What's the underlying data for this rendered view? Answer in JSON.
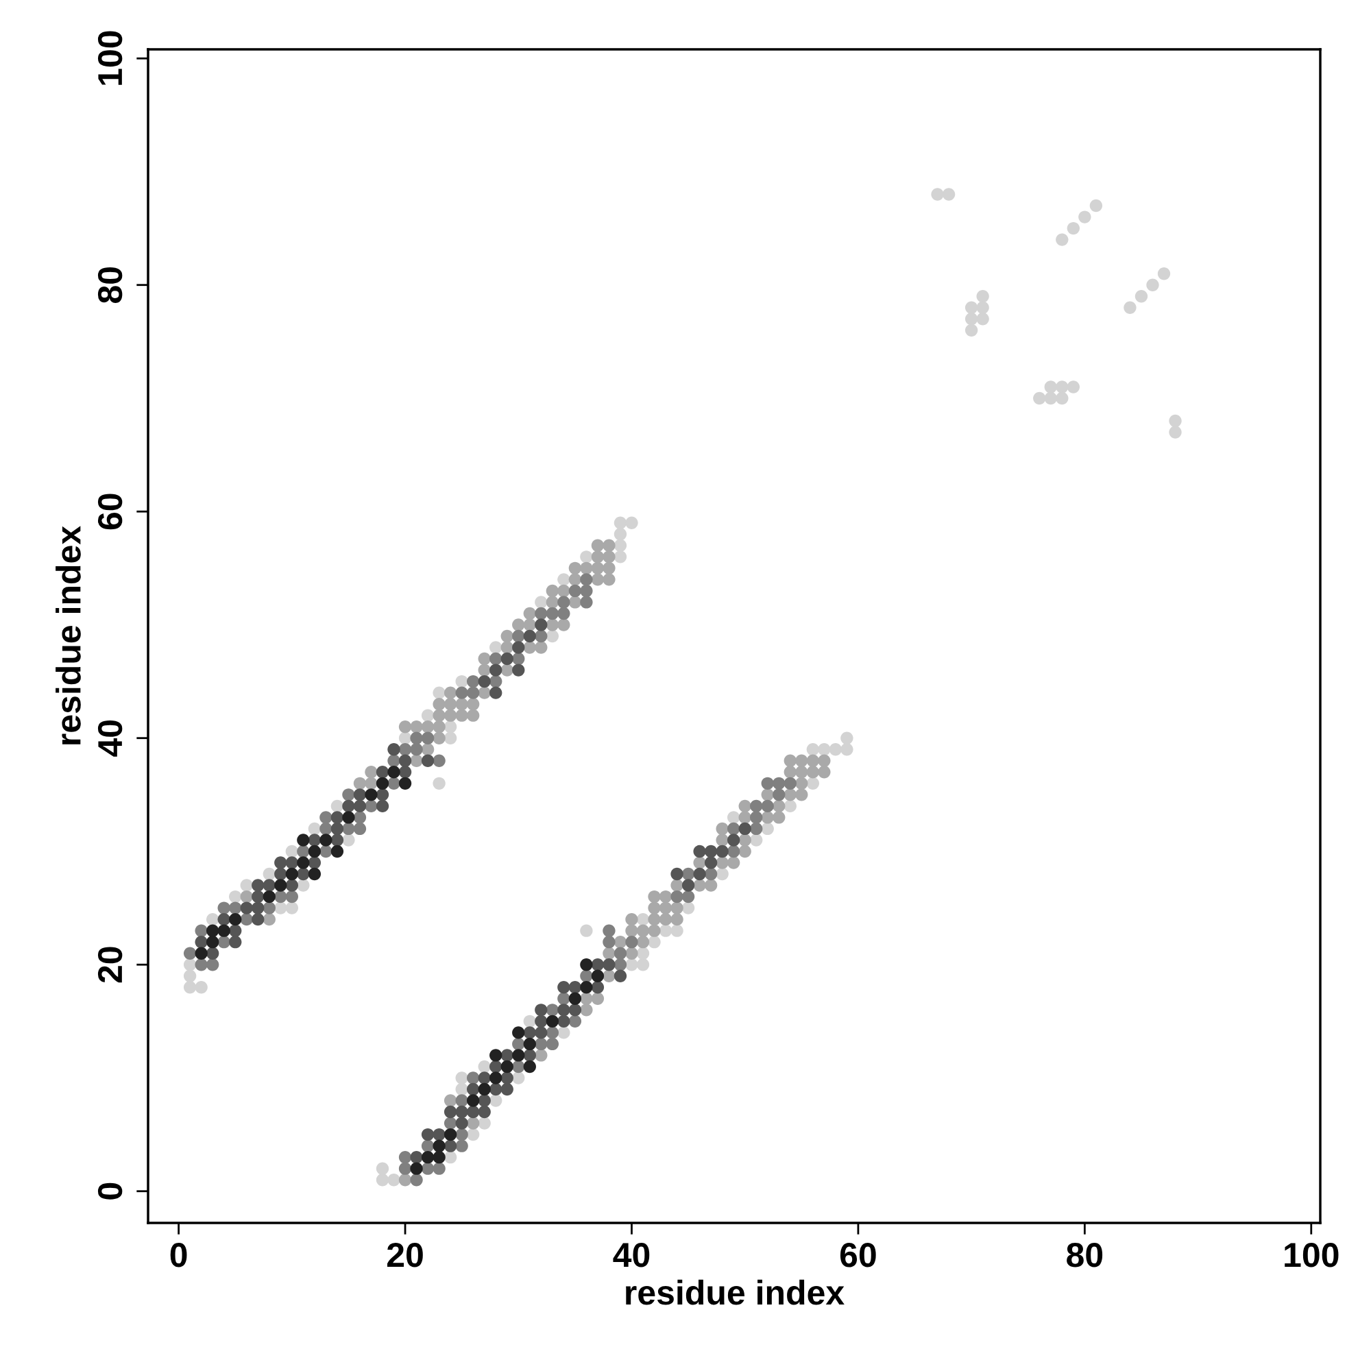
{
  "chart_data": {
    "type": "scatter",
    "xlabel": "residue index",
    "ylabel": "residue index",
    "xlim": [
      -2.7,
      100.8
    ],
    "ylim": [
      -2.8,
      100.8
    ],
    "xticks": [
      0,
      20,
      40,
      60,
      80,
      100
    ],
    "yticks": [
      0,
      20,
      40,
      60,
      80,
      100
    ],
    "grid": false,
    "marker": "circle",
    "series": [
      {
        "color": "#d3d3d3",
        "x": [
          1,
          2,
          1,
          1,
          3,
          9,
          10,
          5,
          6,
          11,
          8,
          10,
          15,
          12,
          14,
          23,
          20,
          24,
          24,
          22,
          23,
          25,
          28,
          33,
          32,
          34,
          36,
          39,
          39,
          39,
          39,
          40,
          18,
          19,
          18,
          24,
          26,
          27,
          28,
          25,
          25,
          30,
          27,
          34,
          31,
          40,
          41,
          41,
          42,
          36,
          43,
          44,
          41,
          45,
          48,
          51,
          52,
          49,
          54,
          56,
          56,
          57,
          58,
          59,
          59,
          67,
          68,
          78,
          79,
          80,
          81,
          84,
          85,
          86,
          87,
          71,
          70,
          71,
          70,
          71,
          70,
          77,
          78,
          79,
          76,
          77,
          78,
          88,
          88
        ],
        "values": [
          18,
          18,
          19,
          20,
          24,
          25,
          25,
          26,
          27,
          27,
          28,
          30,
          31,
          32,
          34,
          36,
          40,
          40,
          41,
          42,
          44,
          45,
          48,
          49,
          52,
          54,
          56,
          56,
          57,
          58,
          59,
          59,
          1,
          1,
          2,
          3,
          5,
          6,
          8,
          9,
          10,
          10,
          11,
          14,
          15,
          20,
          20,
          21,
          22,
          23,
          23,
          23,
          24,
          25,
          28,
          31,
          32,
          33,
          34,
          36,
          39,
          39,
          39,
          39,
          40,
          88,
          88,
          84,
          85,
          86,
          87,
          78,
          79,
          80,
          81,
          79,
          78,
          78,
          77,
          77,
          76,
          71,
          71,
          71,
          70,
          70,
          70,
          68,
          67
        ]
      },
      {
        "color": "#a9a9a9",
        "x": [
          8,
          6,
          16,
          17,
          17,
          21,
          22,
          23,
          20,
          21,
          22,
          23,
          23,
          24,
          25,
          26,
          23,
          24,
          25,
          26,
          24,
          27,
          27,
          29,
          27,
          29,
          31,
          32,
          29,
          30,
          31,
          33,
          34,
          31,
          33,
          35,
          33,
          34,
          35,
          37,
          38,
          35,
          36,
          37,
          38,
          37,
          38,
          37,
          38,
          20,
          26,
          24,
          32,
          36,
          36,
          37,
          38,
          38,
          40,
          39,
          41,
          40,
          41,
          42,
          40,
          42,
          43,
          44,
          42,
          43,
          44,
          42,
          43,
          44,
          46,
          47,
          46,
          48,
          49,
          50,
          48,
          50,
          48,
          50,
          52,
          53,
          50,
          53,
          52,
          54,
          55,
          55,
          54,
          55,
          56,
          57,
          54,
          55,
          56,
          57
        ],
        "values": [
          24,
          26,
          36,
          36,
          37,
          38,
          39,
          40,
          41,
          41,
          41,
          41,
          42,
          42,
          42,
          42,
          43,
          43,
          43,
          43,
          44,
          44,
          46,
          46,
          47,
          48,
          48,
          48,
          49,
          50,
          50,
          50,
          50,
          51,
          52,
          52,
          53,
          53,
          54,
          54,
          54,
          55,
          55,
          55,
          55,
          56,
          56,
          57,
          57,
          1,
          6,
          8,
          12,
          16,
          17,
          17,
          19,
          21,
          21,
          22,
          22,
          23,
          23,
          23,
          24,
          24,
          24,
          24,
          25,
          25,
          25,
          26,
          26,
          27,
          27,
          27,
          29,
          29,
          29,
          30,
          31,
          31,
          32,
          33,
          33,
          33,
          34,
          34,
          35,
          35,
          35,
          36,
          37,
          37,
          37,
          37,
          38,
          38,
          38,
          38
        ]
      },
      {
        "color": "#808080",
        "x": [
          2,
          3,
          1,
          4,
          2,
          6,
          4,
          5,
          8,
          9,
          10,
          11,
          13,
          13,
          15,
          16,
          13,
          16,
          17,
          15,
          19,
          19,
          23,
          20,
          21,
          21,
          22,
          25,
          26,
          26,
          28,
          28,
          30,
          30,
          32,
          32,
          33,
          34,
          34,
          36,
          35,
          36,
          36,
          21,
          20,
          22,
          23,
          20,
          22,
          25,
          25,
          24,
          25,
          26,
          30,
          30,
          32,
          33,
          33,
          35,
          33,
          34,
          36,
          39,
          39,
          38,
          40,
          38,
          44,
          45,
          45,
          47,
          49,
          49,
          51,
          51,
          51,
          52,
          53,
          52,
          53,
          54
        ],
        "values": [
          20,
          20,
          21,
          22,
          23,
          24,
          25,
          25,
          25,
          26,
          26,
          30,
          30,
          32,
          32,
          32,
          33,
          33,
          34,
          35,
          36,
          38,
          38,
          39,
          39,
          40,
          40,
          44,
          44,
          45,
          45,
          47,
          47,
          49,
          49,
          51,
          51,
          51,
          52,
          52,
          53,
          53,
          54,
          1,
          2,
          2,
          2,
          3,
          4,
          4,
          5,
          6,
          8,
          10,
          11,
          13,
          13,
          13,
          14,
          15,
          16,
          17,
          19,
          20,
          21,
          22,
          22,
          23,
          26,
          26,
          28,
          28,
          30,
          32,
          32,
          33,
          34,
          34,
          35,
          36,
          36,
          36
        ]
      },
      {
        "color": "#555555",
        "x": [
          3,
          2,
          5,
          5,
          4,
          7,
          6,
          7,
          7,
          7,
          8,
          10,
          9,
          11,
          9,
          10,
          12,
          12,
          14,
          14,
          14,
          15,
          16,
          18,
          16,
          18,
          18,
          20,
          20,
          22,
          19,
          28,
          27,
          28,
          30,
          29,
          30,
          31,
          32,
          21,
          24,
          22,
          23,
          25,
          24,
          25,
          26,
          27,
          27,
          26,
          28,
          29,
          27,
          29,
          28,
          29,
          31,
          31,
          32,
          32,
          34,
          32,
          34,
          35,
          34,
          35,
          37,
          39,
          37,
          38,
          45,
          44,
          46,
          47,
          46,
          47,
          48,
          49,
          50
        ],
        "values": [
          21,
          22,
          22,
          23,
          24,
          24,
          25,
          25,
          26,
          27,
          27,
          27,
          28,
          28,
          29,
          29,
          29,
          31,
          31,
          32,
          33,
          34,
          34,
          34,
          35,
          35,
          37,
          37,
          38,
          38,
          39,
          44,
          45,
          46,
          46,
          47,
          48,
          49,
          50,
          3,
          4,
          5,
          5,
          6,
          7,
          7,
          7,
          7,
          8,
          9,
          9,
          9,
          10,
          10,
          11,
          12,
          12,
          14,
          14,
          15,
          15,
          16,
          16,
          16,
          18,
          18,
          18,
          19,
          20,
          20,
          27,
          28,
          28,
          29,
          30,
          30,
          30,
          31,
          32
        ]
      },
      {
        "color": "#222222",
        "x": [
          2,
          3,
          3,
          4,
          5,
          8,
          9,
          10,
          12,
          11,
          12,
          14,
          11,
          13,
          15,
          17,
          18,
          20,
          19,
          21,
          22,
          23,
          23,
          24,
          26,
          27,
          28,
          29,
          31,
          28,
          30,
          31,
          30,
          33,
          35,
          36,
          37,
          36
        ],
        "values": [
          21,
          22,
          23,
          23,
          24,
          26,
          27,
          28,
          28,
          29,
          30,
          30,
          31,
          31,
          33,
          35,
          36,
          36,
          37,
          2,
          3,
          3,
          4,
          5,
          8,
          9,
          10,
          11,
          11,
          12,
          12,
          13,
          14,
          15,
          17,
          18,
          19,
          20
        ]
      }
    ]
  }
}
